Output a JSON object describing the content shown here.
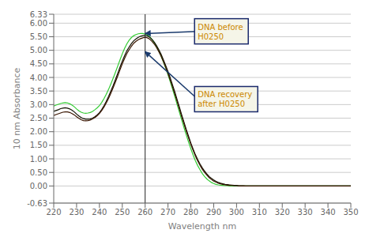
{
  "chart_data": {
    "type": "line",
    "title": "",
    "xlabel": "Wavelength nm",
    "ylabel": "10 nm Absorbance",
    "x": [
      220,
      221,
      222,
      223,
      224,
      225,
      226,
      227,
      228,
      229,
      230,
      231,
      232,
      233,
      234,
      235,
      236,
      237,
      238,
      239,
      240,
      241,
      242,
      243,
      244,
      245,
      246,
      247,
      248,
      249,
      250,
      251,
      252,
      253,
      254,
      255,
      256,
      257,
      258,
      259,
      260,
      261,
      262,
      263,
      264,
      265,
      266,
      267,
      268,
      269,
      270,
      271,
      272,
      273,
      274,
      275,
      276,
      277,
      278,
      279,
      280,
      281,
      282,
      283,
      284,
      285,
      286,
      287,
      288,
      289,
      290,
      291,
      292,
      293,
      294,
      295,
      296,
      297,
      298,
      299,
      300,
      301,
      302,
      303,
      304,
      305,
      306,
      307,
      308,
      309,
      310,
      311,
      312,
      313,
      314,
      315,
      316,
      317,
      318,
      319,
      320,
      321,
      322,
      323,
      324,
      325,
      326,
      327,
      328,
      329,
      330,
      331,
      332,
      333,
      334,
      335,
      336,
      337,
      338,
      339,
      340,
      341,
      342,
      343,
      344,
      345,
      346,
      347,
      348,
      349,
      350
    ],
    "series": [
      {
        "color": "#33cc33",
        "values": [
          2.95,
          2.98,
          3.01,
          3.04,
          3.06,
          3.07,
          3.06,
          3.03,
          2.98,
          2.92,
          2.84,
          2.77,
          2.72,
          2.69,
          2.68,
          2.69,
          2.71,
          2.75,
          2.81,
          2.88,
          2.96,
          3.08,
          3.22,
          3.38,
          3.56,
          3.76,
          3.97,
          4.19,
          4.42,
          4.65,
          4.87,
          5.07,
          5.24,
          5.37,
          5.47,
          5.54,
          5.58,
          5.61,
          5.62,
          5.62,
          5.6,
          5.56,
          5.5,
          5.4,
          5.28,
          5.14,
          4.97,
          4.78,
          4.57,
          4.34,
          4.1,
          3.84,
          3.57,
          3.29,
          3.0,
          2.72,
          2.43,
          2.15,
          1.88,
          1.62,
          1.37,
          1.14,
          0.93,
          0.75,
          0.6,
          0.46,
          0.35,
          0.26,
          0.19,
          0.13,
          0.09,
          0.06,
          0.04,
          0.03,
          0.02,
          0.01,
          0.01,
          0.0,
          0.0,
          0.0,
          0.0,
          0.0,
          0.0,
          0.0,
          0.0,
          0.0,
          0.0,
          0.0,
          0.0,
          0.0,
          0.0,
          0.0,
          0.0,
          0.0,
          0.0,
          0.0,
          0.0,
          0.0,
          0.0,
          0.0,
          0.0,
          0.0,
          0.0,
          0.0,
          0.0,
          0.0,
          0.0,
          0.0,
          0.0,
          0.0,
          0.0,
          0.0,
          0.0,
          0.0,
          0.0,
          0.0,
          0.0,
          0.0,
          0.0,
          0.0,
          0.0,
          0.0,
          0.0,
          0.0,
          0.0,
          0.0,
          0.0,
          0.0,
          0.0,
          0.0,
          0.0
        ]
      },
      {
        "color": "#111100",
        "values": [
          2.75,
          2.78,
          2.81,
          2.85,
          2.87,
          2.88,
          2.87,
          2.84,
          2.79,
          2.73,
          2.65,
          2.58,
          2.52,
          2.48,
          2.46,
          2.46,
          2.47,
          2.5,
          2.55,
          2.62,
          2.7,
          2.82,
          2.96,
          3.12,
          3.3,
          3.5,
          3.7,
          3.92,
          4.15,
          4.38,
          4.6,
          4.8,
          4.98,
          5.12,
          5.25,
          5.35,
          5.42,
          5.48,
          5.52,
          5.54,
          5.55,
          5.53,
          5.48,
          5.4,
          5.3,
          5.17,
          5.02,
          4.85,
          4.65,
          4.44,
          4.22,
          3.98,
          3.72,
          3.46,
          3.18,
          2.9,
          2.62,
          2.35,
          2.08,
          1.83,
          1.58,
          1.36,
          1.15,
          0.97,
          0.81,
          0.67,
          0.55,
          0.44,
          0.35,
          0.28,
          0.22,
          0.17,
          0.13,
          0.1,
          0.08,
          0.06,
          0.05,
          0.04,
          0.03,
          0.02,
          0.02,
          0.01,
          0.01,
          0.01,
          0.0,
          0.0,
          0.0,
          0.0,
          0.0,
          0.0,
          0.0,
          0.0,
          0.0,
          0.0,
          0.0,
          0.0,
          0.0,
          0.0,
          0.0,
          0.0,
          0.0,
          0.0,
          0.0,
          0.0,
          0.0,
          0.0,
          0.0,
          0.0,
          0.0,
          0.0,
          0.0,
          0.0,
          0.0,
          0.0,
          0.0,
          0.0,
          0.0,
          0.0,
          0.0,
          0.0,
          0.0,
          0.0,
          0.0,
          0.0,
          0.0,
          0.0,
          0.0,
          0.0,
          0.0,
          0.0,
          0.0
        ]
      },
      {
        "color": "#3a1500",
        "values": [
          2.6,
          2.63,
          2.66,
          2.69,
          2.72,
          2.73,
          2.73,
          2.71,
          2.67,
          2.62,
          2.55,
          2.49,
          2.44,
          2.41,
          2.4,
          2.41,
          2.43,
          2.47,
          2.52,
          2.59,
          2.67,
          2.78,
          2.91,
          3.06,
          3.23,
          3.42,
          3.62,
          3.83,
          4.05,
          4.28,
          4.5,
          4.7,
          4.88,
          5.02,
          5.15,
          5.26,
          5.33,
          5.39,
          5.43,
          5.46,
          5.48,
          5.46,
          5.41,
          5.33,
          5.23,
          5.1,
          4.95,
          4.78,
          4.58,
          4.37,
          4.14,
          3.9,
          3.64,
          3.38,
          3.11,
          2.83,
          2.55,
          2.29,
          2.02,
          1.77,
          1.53,
          1.31,
          1.1,
          0.92,
          0.76,
          0.62,
          0.5,
          0.4,
          0.31,
          0.24,
          0.18,
          0.14,
          0.1,
          0.08,
          0.06,
          0.04,
          0.03,
          0.02,
          0.02,
          0.01,
          0.01,
          0.0,
          0.0,
          0.0,
          0.0,
          0.0,
          0.0,
          0.0,
          0.0,
          0.0,
          0.0,
          0.0,
          0.0,
          0.0,
          0.0,
          0.0,
          0.0,
          0.0,
          0.0,
          0.0,
          0.0,
          0.0,
          0.0,
          0.0,
          0.0,
          0.0,
          0.0,
          0.0,
          0.0,
          0.0,
          0.0,
          0.0,
          0.0,
          0.0,
          0.0,
          0.0,
          0.0,
          0.0,
          0.0,
          0.0,
          0.0,
          0.0,
          0.0,
          0.0,
          0.0,
          0.0,
          0.0,
          0.0,
          0.0,
          0.0,
          0.0
        ]
      }
    ],
    "xlim": [
      220,
      350
    ],
    "xticks": [
      220,
      230,
      240,
      250,
      260,
      270,
      280,
      290,
      300,
      310,
      320,
      330,
      340,
      350
    ],
    "ylim": [
      -0.63,
      6.33
    ],
    "yticks": [
      -0.63,
      {
        "value": 0,
        "label": "0.00"
      },
      {
        "value": 0.5,
        "label": "0.50"
      },
      {
        "value": 1,
        "label": "1.00"
      },
      {
        "value": 1.5,
        "label": "1.50"
      },
      {
        "value": 2,
        "label": "2.00"
      },
      {
        "value": 2.5,
        "label": "2.50"
      },
      {
        "value": 3,
        "label": "3.00"
      },
      {
        "value": 3.5,
        "label": "3.50"
      },
      {
        "value": 4,
        "label": "4.00"
      },
      {
        "value": 4.5,
        "label": "4.50"
      },
      {
        "value": 5,
        "label": "5.00"
      },
      {
        "value": 5.5,
        "label": "5.50"
      },
      {
        "value": 6,
        "label": "6.00"
      },
      6.33
    ],
    "grid": "y",
    "vlines": [
      260
    ],
    "annotations": [
      {
        "text": "DNA before\nH0250",
        "x": 260,
        "y": 5.62,
        "text_x": 283,
        "text_y": 5.7
      },
      {
        "text": "DNA recovery\nafter H0250",
        "x": 260,
        "y": 4.95,
        "text_x": 283,
        "text_y": 3.2
      }
    ]
  }
}
